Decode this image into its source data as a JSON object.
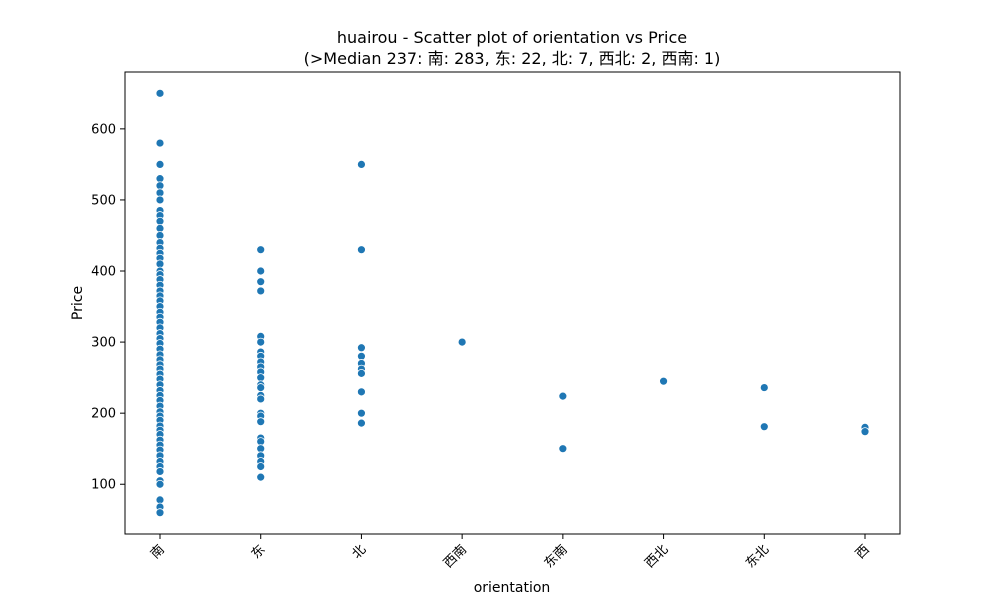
{
  "chart_data": {
    "type": "scatter",
    "title": "huairou - Scatter plot of orientation vs Price",
    "subtitle": "(>Median 237: 南: 283, 东: 22, 北: 7, 西北: 2, 西南: 1)",
    "xlabel": "orientation",
    "ylabel": "Price",
    "categories": [
      "南",
      "东",
      "北",
      "西南",
      "东南",
      "西北",
      "东北",
      "西"
    ],
    "yticks": [
      100,
      200,
      300,
      400,
      500,
      600
    ],
    "ylim": [
      30,
      680
    ],
    "grid": false,
    "legend": "none",
    "color": "#1f77b4",
    "series": [
      {
        "points": [
          {
            "x": "南",
            "y": 650
          },
          {
            "x": "南",
            "y": 580
          },
          {
            "x": "南",
            "y": 550
          },
          {
            "x": "南",
            "y": 530
          },
          {
            "x": "南",
            "y": 520
          },
          {
            "x": "南",
            "y": 510
          },
          {
            "x": "南",
            "y": 500
          },
          {
            "x": "南",
            "y": 485
          },
          {
            "x": "南",
            "y": 478
          },
          {
            "x": "南",
            "y": 470
          },
          {
            "x": "南",
            "y": 460
          },
          {
            "x": "南",
            "y": 450
          },
          {
            "x": "南",
            "y": 440
          },
          {
            "x": "南",
            "y": 432
          },
          {
            "x": "南",
            "y": 425
          },
          {
            "x": "南",
            "y": 418
          },
          {
            "x": "南",
            "y": 410
          },
          {
            "x": "南",
            "y": 400
          },
          {
            "x": "南",
            "y": 395
          },
          {
            "x": "南",
            "y": 388
          },
          {
            "x": "南",
            "y": 380
          },
          {
            "x": "南",
            "y": 372
          },
          {
            "x": "南",
            "y": 365
          },
          {
            "x": "南",
            "y": 358
          },
          {
            "x": "南",
            "y": 350
          },
          {
            "x": "南",
            "y": 342
          },
          {
            "x": "南",
            "y": 335
          },
          {
            "x": "南",
            "y": 328
          },
          {
            "x": "南",
            "y": 320
          },
          {
            "x": "南",
            "y": 312
          },
          {
            "x": "南",
            "y": 305
          },
          {
            "x": "南",
            "y": 298
          },
          {
            "x": "南",
            "y": 290
          },
          {
            "x": "南",
            "y": 282
          },
          {
            "x": "南",
            "y": 275
          },
          {
            "x": "南",
            "y": 268
          },
          {
            "x": "南",
            "y": 262
          },
          {
            "x": "南",
            "y": 255
          },
          {
            "x": "南",
            "y": 248
          },
          {
            "x": "南",
            "y": 240
          },
          {
            "x": "南",
            "y": 232
          },
          {
            "x": "南",
            "y": 225
          },
          {
            "x": "南",
            "y": 218
          },
          {
            "x": "南",
            "y": 210
          },
          {
            "x": "南",
            "y": 202
          },
          {
            "x": "南",
            "y": 196
          },
          {
            "x": "南",
            "y": 190
          },
          {
            "x": "南",
            "y": 182
          },
          {
            "x": "南",
            "y": 176
          },
          {
            "x": "南",
            "y": 170
          },
          {
            "x": "南",
            "y": 162
          },
          {
            "x": "南",
            "y": 155
          },
          {
            "x": "南",
            "y": 148
          },
          {
            "x": "南",
            "y": 140
          },
          {
            "x": "南",
            "y": 132
          },
          {
            "x": "南",
            "y": 125
          },
          {
            "x": "南",
            "y": 118
          },
          {
            "x": "南",
            "y": 105
          },
          {
            "x": "南",
            "y": 100
          },
          {
            "x": "南",
            "y": 78
          },
          {
            "x": "南",
            "y": 68
          },
          {
            "x": "南",
            "y": 60
          },
          {
            "x": "东",
            "y": 430
          },
          {
            "x": "东",
            "y": 400
          },
          {
            "x": "东",
            "y": 385
          },
          {
            "x": "东",
            "y": 372
          },
          {
            "x": "东",
            "y": 308
          },
          {
            "x": "东",
            "y": 300
          },
          {
            "x": "东",
            "y": 286
          },
          {
            "x": "东",
            "y": 280
          },
          {
            "x": "东",
            "y": 272
          },
          {
            "x": "东",
            "y": 265
          },
          {
            "x": "东",
            "y": 258
          },
          {
            "x": "东",
            "y": 250
          },
          {
            "x": "东",
            "y": 240
          },
          {
            "x": "东",
            "y": 236
          },
          {
            "x": "东",
            "y": 225
          },
          {
            "x": "东",
            "y": 220
          },
          {
            "x": "东",
            "y": 200
          },
          {
            "x": "东",
            "y": 196
          },
          {
            "x": "东",
            "y": 188
          },
          {
            "x": "东",
            "y": 165
          },
          {
            "x": "东",
            "y": 160
          },
          {
            "x": "东",
            "y": 150
          },
          {
            "x": "东",
            "y": 140
          },
          {
            "x": "东",
            "y": 132
          },
          {
            "x": "东",
            "y": 125
          },
          {
            "x": "东",
            "y": 110
          },
          {
            "x": "北",
            "y": 550
          },
          {
            "x": "北",
            "y": 430
          },
          {
            "x": "北",
            "y": 292
          },
          {
            "x": "北",
            "y": 280
          },
          {
            "x": "北",
            "y": 270
          },
          {
            "x": "北",
            "y": 262
          },
          {
            "x": "北",
            "y": 256
          },
          {
            "x": "北",
            "y": 230
          },
          {
            "x": "北",
            "y": 200
          },
          {
            "x": "北",
            "y": 186
          },
          {
            "x": "西南",
            "y": 300
          },
          {
            "x": "东南",
            "y": 224
          },
          {
            "x": "东南",
            "y": 150
          },
          {
            "x": "西北",
            "y": 245
          },
          {
            "x": "东北",
            "y": 236
          },
          {
            "x": "东北",
            "y": 181
          },
          {
            "x": "西",
            "y": 180
          },
          {
            "x": "西",
            "y": 174
          }
        ]
      }
    ]
  }
}
